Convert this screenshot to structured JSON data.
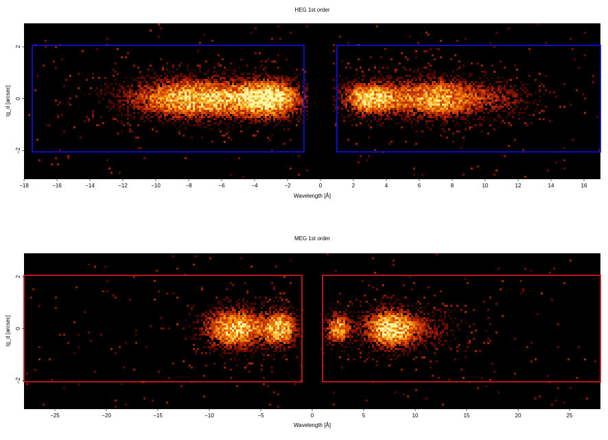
{
  "chart_data": [
    {
      "type": "heatmap",
      "title": "HEG 1st order",
      "xlabel": "Wavelength [Å]",
      "ylabel": "tg_d [arcsec]",
      "xlim": [
        -18,
        17
      ],
      "ylim": [
        -3.1,
        2.9
      ],
      "xticks": [
        -18,
        -16,
        -14,
        -12,
        -10,
        -8,
        -6,
        -4,
        -2,
        0,
        2,
        4,
        6,
        8,
        10,
        12,
        14,
        16
      ],
      "yticks": [
        -2,
        0,
        2
      ],
      "background": "#000000",
      "region_color": "#1010dd",
      "extraction_regions": [
        {
          "x": [
            -17.5,
            -1.0
          ],
          "y": [
            -2.05,
            2.05
          ]
        },
        {
          "x": [
            1.0,
            17.0
          ],
          "y": [
            -2.05,
            2.05
          ]
        }
      ],
      "emission_blobs": [
        {
          "x_center": -7.5,
          "y_center": 0.0,
          "x_spread": 3.0,
          "y_spread": 0.55,
          "intensity": 1.0
        },
        {
          "x_center": -3.0,
          "y_center": 0.0,
          "x_spread": 1.3,
          "y_spread": 0.5,
          "intensity": 0.95
        },
        {
          "x_center": 3.0,
          "y_center": 0.0,
          "x_spread": 1.2,
          "y_spread": 0.45,
          "intensity": 1.0
        },
        {
          "x_center": 7.0,
          "y_center": 0.0,
          "x_spread": 1.8,
          "y_spread": 0.55,
          "intensity": 0.9
        },
        {
          "x_center": 11.0,
          "y_center": 0.0,
          "x_spread": 1.6,
          "y_spread": 0.5,
          "intensity": 0.35
        }
      ]
    },
    {
      "type": "heatmap",
      "title": "MEG 1st order",
      "xlabel": "Wavelength [Å]",
      "ylabel": "tg_d [arcsec]",
      "xlim": [
        -28,
        28
      ],
      "ylim": [
        -3.1,
        2.9
      ],
      "xticks": [
        -25,
        -20,
        -15,
        -10,
        -5,
        0,
        5,
        10,
        15,
        20,
        25
      ],
      "yticks": [
        -2,
        0,
        2
      ],
      "background": "#000000",
      "region_color": "#cc1a1a",
      "extraction_regions": [
        {
          "x": [
            -28,
            -1.0
          ],
          "y": [
            -2.05,
            2.05
          ]
        },
        {
          "x": [
            1.0,
            28
          ],
          "y": [
            -2.05,
            2.05
          ]
        }
      ],
      "emission_blobs": [
        {
          "x_center": -7.5,
          "y_center": 0.0,
          "x_spread": 2.2,
          "y_spread": 0.55,
          "intensity": 1.0
        },
        {
          "x_center": -3.0,
          "y_center": 0.0,
          "x_spread": 1.1,
          "y_spread": 0.5,
          "intensity": 0.9
        },
        {
          "x_center": 2.5,
          "y_center": 0.0,
          "x_spread": 0.9,
          "y_spread": 0.45,
          "intensity": 0.85
        },
        {
          "x_center": 7.5,
          "y_center": 0.0,
          "x_spread": 1.8,
          "y_spread": 0.55,
          "intensity": 1.0
        },
        {
          "x_center": 11.5,
          "y_center": 0.0,
          "x_spread": 2.5,
          "y_spread": 0.5,
          "intensity": 0.3
        }
      ]
    }
  ]
}
